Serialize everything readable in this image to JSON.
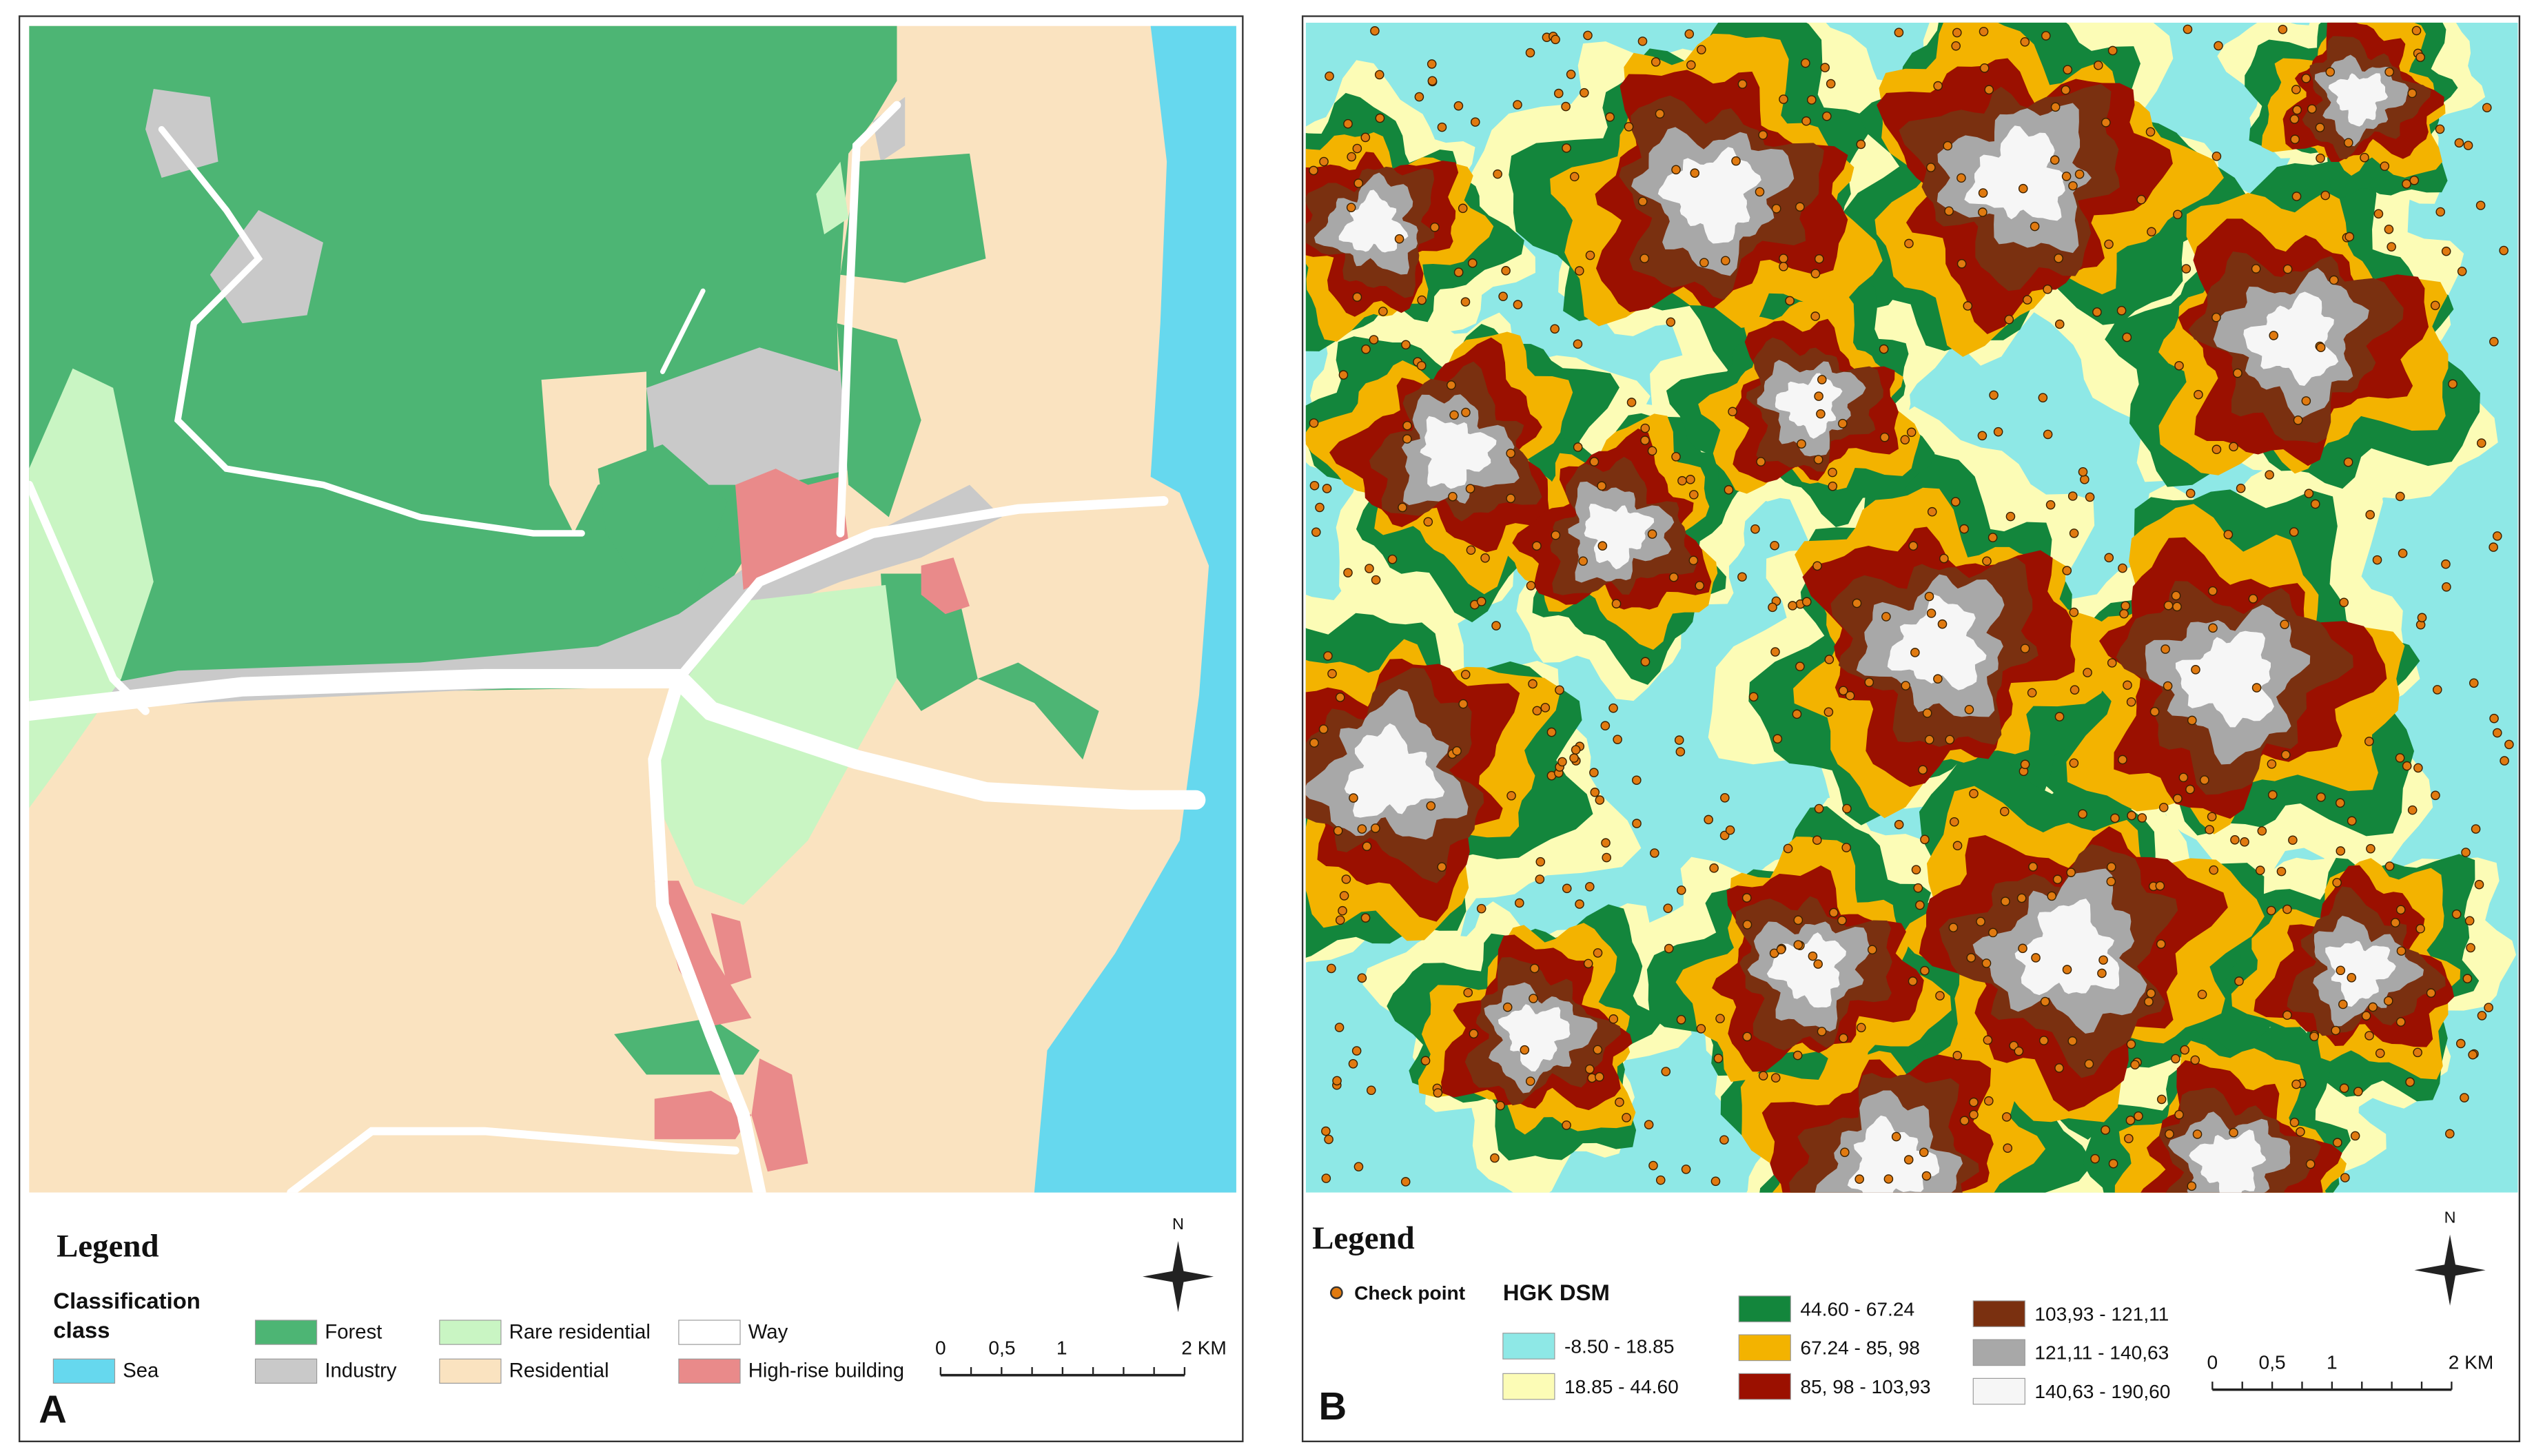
{
  "panel_a": {
    "label": "A",
    "legend_title": "Legend",
    "classification_title": "Classification class",
    "classes": [
      {
        "name": "Sea",
        "color": "#66d8ee"
      },
      {
        "name": "Forest",
        "color": "#4db574"
      },
      {
        "name": "Industry",
        "color": "#c9c9c9"
      },
      {
        "name": "Rare residential",
        "color": "#c9f5c3"
      },
      {
        "name": "Residential",
        "color": "#fae3c0"
      },
      {
        "name": "Way",
        "color": "#ffffff"
      },
      {
        "name": "High-rise building",
        "color": "#e98a8a"
      }
    ],
    "scale_labels": [
      "0",
      "0,5",
      "1",
      "2 KM"
    ],
    "north": "N"
  },
  "panel_b": {
    "label": "B",
    "legend_title": "Legend",
    "check_point": "Check point",
    "dsm_title": "HGK DSM",
    "classes": [
      {
        "name": "-8.50 - 18.85",
        "color": "#8ee8e6"
      },
      {
        "name": "18.85 - 44.60",
        "color": "#fcfcb6"
      },
      {
        "name": "44.60 - 67.24",
        "color": "#13863c"
      },
      {
        "name": "67.24 - 85, 98",
        "color": "#f3b300"
      },
      {
        "name": "85, 98 - 103,93",
        "color": "#9b1000"
      },
      {
        "name": "103,93 - 121,11",
        "color": "#7a3010"
      },
      {
        "name": "121,11 - 140,63",
        "color": "#a8a8a8"
      },
      {
        "name": "140,63 - 190,60",
        "color": "#f6f6f6"
      }
    ],
    "scale_labels": [
      "0",
      "0,5",
      "1",
      "2 KM"
    ],
    "north": "N"
  }
}
